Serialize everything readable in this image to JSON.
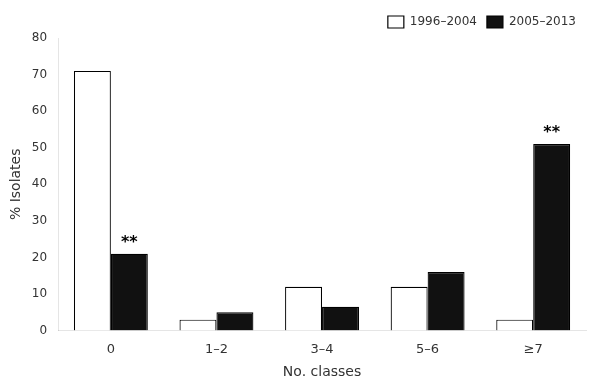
{
  "chart_data": {
    "type": "bar",
    "xlabel": "No. classes",
    "ylabel": "% Isolates",
    "categories": [
      "0",
      "1–2",
      "3–4",
      "5–6",
      "≥7"
    ],
    "series": [
      {
        "name": "1996–2004",
        "color": "#ffffff",
        "values": [
          71,
          3,
          12,
          12,
          3
        ]
      },
      {
        "name": "2005–2013",
        "color": "#111111",
        "values": [
          21,
          5,
          6.5,
          16,
          51
        ]
      }
    ],
    "annotations": [
      {
        "text": "**",
        "category": "0",
        "series": "2005–2013"
      },
      {
        "text": "**",
        "category": "≥7",
        "series": "2005–2013"
      }
    ],
    "ylim": [
      0,
      80
    ],
    "yticks": [
      0,
      10,
      20,
      30,
      40,
      50,
      60,
      70,
      80
    ],
    "grid": false,
    "legend": "upper right"
  }
}
